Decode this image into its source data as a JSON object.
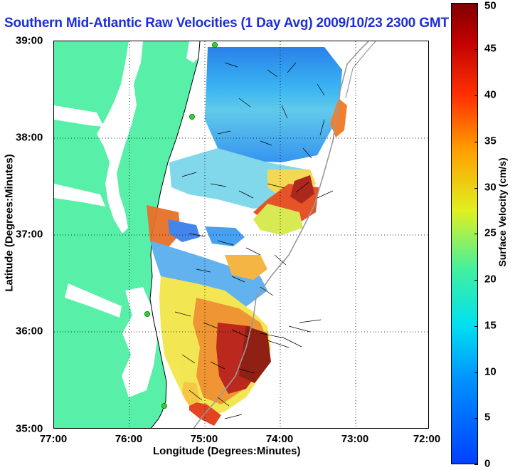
{
  "title": "Southern Mid-Atlantic Raw Velocities (1 Day Avg) 2009/10/23 2300 GMT",
  "xlabel": "Longitude (Degrees:Minutes)",
  "ylabel": "Latitude (Degrees:Minutes)",
  "colorbar_label": "Surface Velocity (cm/s)",
  "x_ticks": [
    "77:00",
    "76:00",
    "75:00",
    "74:00",
    "73:00",
    "72:00"
  ],
  "y_ticks": [
    "39:00",
    "38:00",
    "37:00",
    "36:00",
    "35:00"
  ],
  "colorbar_ticks": [
    "0",
    "5",
    "10",
    "15",
    "20",
    "25",
    "30",
    "35",
    "40",
    "45",
    "50"
  ],
  "colors": {
    "land": "#58f0a8",
    "title": "#1d2fd6",
    "coastline": "#000000",
    "isobath": "#9a9a9a",
    "station": "#2fd12f"
  },
  "map": {
    "lon_range": [
      -77,
      -72
    ],
    "lat_range": [
      35,
      39
    ],
    "grid": "dotted",
    "colorscale": "jet",
    "velocity_range_cm_s": [
      0,
      50
    ],
    "stations": [
      "station-1",
      "station-2",
      "station-3",
      "station-4"
    ]
  }
}
